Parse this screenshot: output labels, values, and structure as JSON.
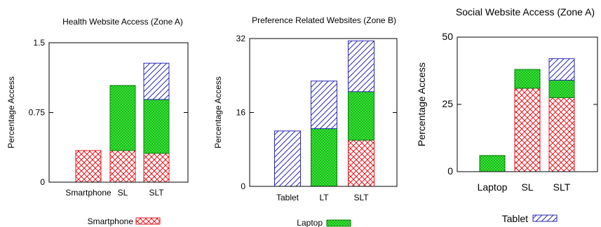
{
  "patterns": {
    "Smartphone": {
      "stroke": "#e8141b",
      "fill": "#ffffff",
      "kind": "crosshatch"
    },
    "Laptop": {
      "stroke": "#0c7a0c",
      "fill": "#33e633",
      "kind": "dots"
    },
    "Tablet": {
      "stroke": "#2a2ab0",
      "fill": "#ffffff",
      "kind": "diagonal"
    }
  },
  "chart_data": [
    {
      "type": "bar",
      "stacked": true,
      "title": "Health Website Access (Zone A)",
      "xlabel": "",
      "ylabel": "Percentage Access",
      "ylim": [
        0,
        1.5
      ],
      "yticks": [
        "0",
        "0.75",
        "1.5"
      ],
      "ytick_values": [
        0,
        0.75,
        1.5
      ],
      "categories": [
        "Smartphone",
        "SL",
        "SLT"
      ],
      "series": [
        {
          "name": "Smartphone",
          "values": [
            0.34,
            0.34,
            0.31
          ]
        },
        {
          "name": "Laptop",
          "values": [
            0,
            0.7,
            0.58
          ]
        },
        {
          "name": "Tablet",
          "values": [
            0,
            0,
            0.39
          ]
        }
      ],
      "legend": {
        "entry": "Smartphone",
        "position": "bottom"
      }
    },
    {
      "type": "bar",
      "stacked": true,
      "title": "Preference Related Websites (Zone B)",
      "xlabel": "",
      "ylabel": "Percentage Access",
      "ylim": [
        0,
        32
      ],
      "yticks": [
        "0",
        "16",
        "32"
      ],
      "ytick_values": [
        0,
        16,
        32
      ],
      "categories": [
        "Tablet",
        "LT",
        "SLT"
      ],
      "series": [
        {
          "name": "Smartphone",
          "values": [
            0,
            0,
            10
          ]
        },
        {
          "name": "Laptop",
          "values": [
            0,
            12.5,
            10.5
          ]
        },
        {
          "name": "Tablet",
          "values": [
            12,
            10.3,
            11
          ]
        }
      ],
      "legend": {
        "entry": "Laptop",
        "position": "bottom"
      }
    },
    {
      "type": "bar",
      "stacked": true,
      "title": "Social Website Access (Zone A)",
      "xlabel": "",
      "ylabel": "Percentage Access",
      "ylim": [
        0,
        50
      ],
      "yticks": [
        "0",
        "25",
        "50"
      ],
      "ytick_values": [
        0,
        25,
        50
      ],
      "categories": [
        "Laptop",
        "SL",
        "SLT"
      ],
      "series": [
        {
          "name": "Smartphone",
          "values": [
            0,
            31,
            27.5
          ]
        },
        {
          "name": "Laptop",
          "values": [
            6,
            7,
            6.5
          ]
        },
        {
          "name": "Tablet",
          "values": [
            0,
            0,
            8
          ]
        }
      ],
      "legend": {
        "entry": "Tablet",
        "position": "bottom"
      }
    }
  ]
}
